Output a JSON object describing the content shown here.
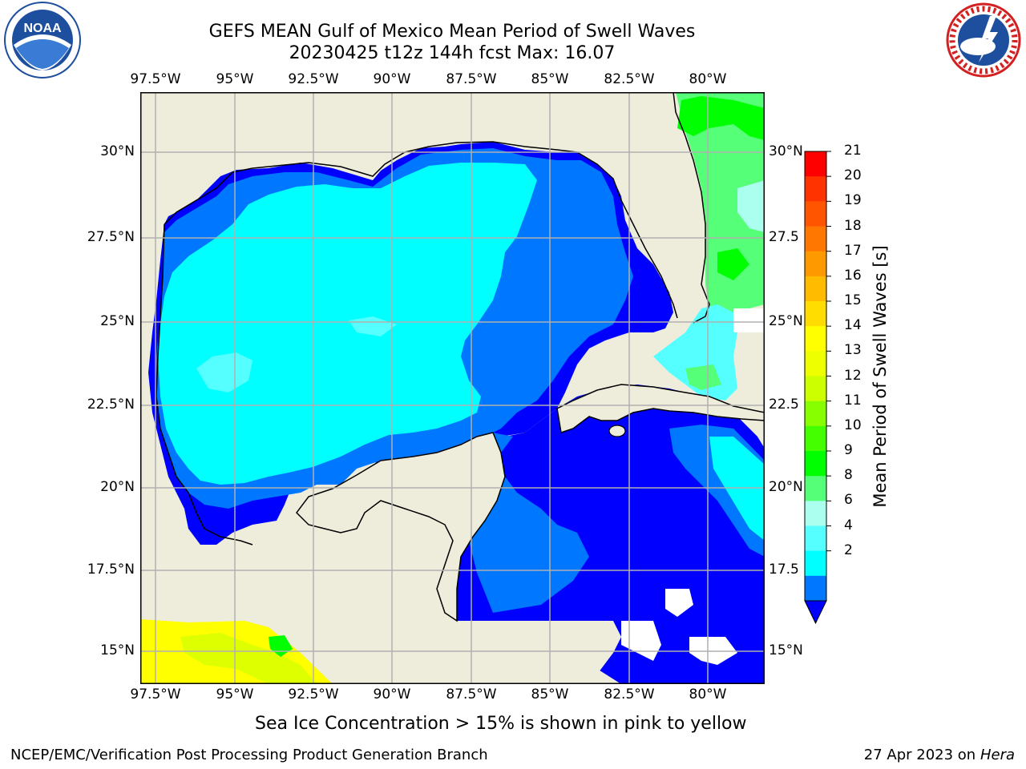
{
  "title_line1": "GEFS MEAN Gulf of Mexico Mean Period of Swell Waves",
  "title_line2": "20230425 t12z 144h fcst   Max: 16.07",
  "lon_labels": [
    "97.5°W",
    "95°W",
    "92.5°W",
    "90°W",
    "87.5°W",
    "85°W",
    "82.5°W",
    "80°W"
  ],
  "lat_labels_left": [
    "30°N",
    "27.5°N",
    "25°N",
    "22.5°N",
    "20°N",
    "17.5°N",
    "15°N"
  ],
  "lat_labels_right": [
    "30°N",
    "27.5",
    "25°N",
    "22.5",
    "20°N",
    "17.5",
    "15°N"
  ],
  "colorbar": {
    "title": "Mean Period of Swell Waves [s]",
    "ticks": [
      "21",
      "20",
      "19",
      "18",
      "17",
      "16",
      "15",
      "14",
      "13",
      "12",
      "11",
      "10",
      "9",
      "8",
      "6",
      "4",
      "2"
    ],
    "colors": [
      "#ff0000",
      "#ff3300",
      "#ff5500",
      "#ff7700",
      "#ff9900",
      "#ffbb00",
      "#ffdd00",
      "#ffff00",
      "#eeff00",
      "#ccff00",
      "#88ff00",
      "#44ff00",
      "#00ff00",
      "#55ff77",
      "#aaffee",
      "#55ffff",
      "#00ffff",
      "#0077ff"
    ],
    "extend_color": "#0000ff"
  },
  "map_colors": {
    "land": "#eeeddc",
    "deep_blue": "#0000ff",
    "mid_blue": "#0077ff",
    "cyan": "#00ffff",
    "light_cyan": "#55ffff",
    "green": "#00ff00",
    "light_green": "#55ff77",
    "yellow": "#ffff00",
    "yellow_green": "#ddff00"
  },
  "note": "Sea Ice Concentration > 15% is shown in pink to yellow",
  "footer_left": "NCEP/EMC/Verification Post Processing Product Generation Branch",
  "footer_right_prefix": "27 Apr 2023 on ",
  "footer_right_machine": "Hera",
  "logos": {
    "noaa": "NOAA",
    "noaa_ring": "NATIONAL OCEANIC AND ATMOSPHERIC ADMINISTRATION · U.S. DEPARTMENT OF COMMERCE",
    "nws_ring": "NATIONAL WEATHER SERVICE"
  }
}
